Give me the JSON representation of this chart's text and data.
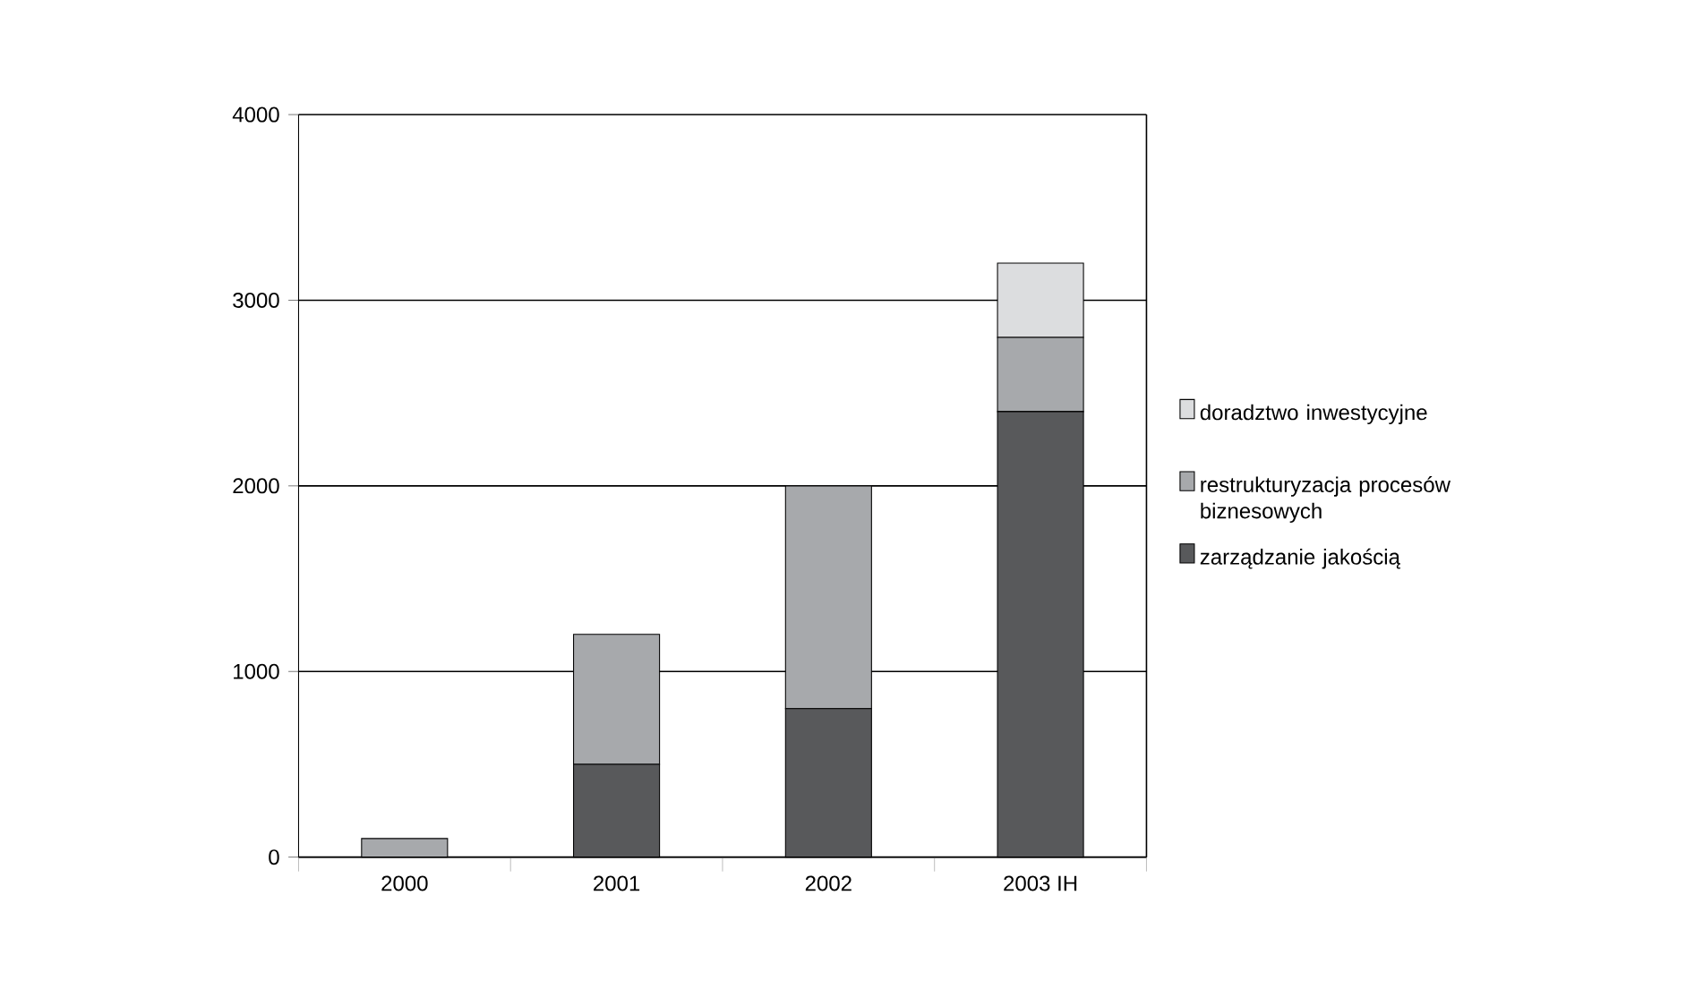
{
  "chart_data": {
    "type": "bar",
    "stacked": true,
    "categories": [
      "2000",
      "2001",
      "2002",
      "2003 IH"
    ],
    "series": [
      {
        "name": "zarządzanie jakością",
        "color": "#58595b",
        "values": [
          0,
          500,
          800,
          2400
        ]
      },
      {
        "name": "restrukturyzacja procesów biznesowych",
        "color": "#a7a9ac",
        "values": [
          100,
          700,
          1200,
          400
        ]
      },
      {
        "name": "doradztwo inwestycyjne",
        "color": "#dcdddf",
        "values": [
          0,
          0,
          0,
          400
        ]
      }
    ],
    "ylim": [
      0,
      4000
    ],
    "yticks": [
      0,
      1000,
      2000,
      3000,
      4000
    ],
    "grid": "y",
    "legend": "right"
  }
}
